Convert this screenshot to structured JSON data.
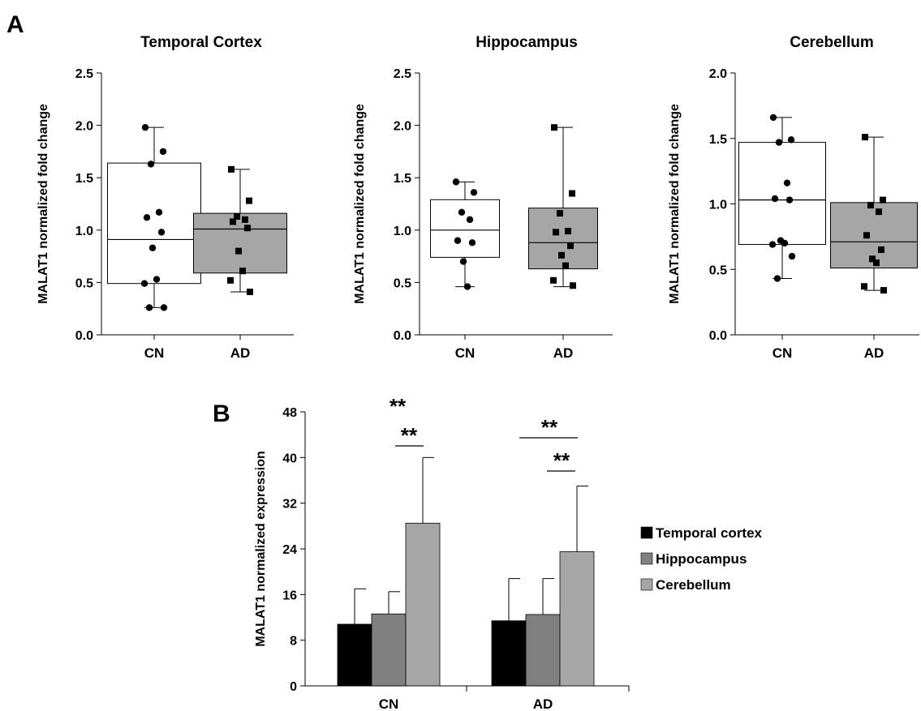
{
  "panels": {
    "a_label": "A",
    "b_label": "B"
  },
  "chart_data": [
    {
      "type": "box",
      "title": "Temporal Cortex",
      "ylabel": "MALAT1 normalized fold change",
      "ylim": [
        0,
        2.5
      ],
      "yticks": [
        "0.0",
        "0.5",
        "1.0",
        "1.5",
        "2.0",
        "2.5"
      ],
      "categories": [
        "CN",
        "AD"
      ],
      "groups": [
        {
          "category": "CN",
          "fill": "#ffffff",
          "marker": "circle",
          "q1": 0.49,
          "median": 0.91,
          "q3": 1.64,
          "whisker_low": 0.26,
          "whisker_high": 1.98,
          "points": [
            1.98,
            1.75,
            1.63,
            1.17,
            1.12,
            0.98,
            0.83,
            0.53,
            0.49,
            0.26,
            0.26
          ]
        },
        {
          "category": "AD",
          "fill": "#a6a6a6",
          "marker": "square",
          "q1": 0.59,
          "median": 1.01,
          "q3": 1.16,
          "whisker_low": 0.41,
          "whisker_high": 1.58,
          "points": [
            1.58,
            1.28,
            1.13,
            1.1,
            1.08,
            1.02,
            0.8,
            0.61,
            0.52,
            0.41
          ]
        }
      ]
    },
    {
      "type": "box",
      "title": "Hippocampus",
      "ylabel": "MALAT1 normalized fold change",
      "ylim": [
        0,
        2.5
      ],
      "yticks": [
        "0.0",
        "0.5",
        "1.0",
        "1.5",
        "2.0",
        "2.5"
      ],
      "categories": [
        "CN",
        "AD"
      ],
      "groups": [
        {
          "category": "CN",
          "fill": "#ffffff",
          "marker": "circle",
          "q1": 0.74,
          "median": 1.0,
          "q3": 1.29,
          "whisker_low": 0.46,
          "whisker_high": 1.46,
          "points": [
            1.46,
            1.36,
            1.17,
            1.1,
            0.9,
            0.88,
            0.7,
            0.46
          ]
        },
        {
          "category": "AD",
          "fill": "#a6a6a6",
          "marker": "square",
          "q1": 0.63,
          "median": 0.88,
          "q3": 1.21,
          "whisker_low": 0.46,
          "whisker_high": 1.98,
          "points": [
            1.98,
            1.35,
            1.16,
            0.99,
            0.98,
            0.85,
            0.76,
            0.66,
            0.52,
            0.47
          ]
        }
      ]
    },
    {
      "type": "box",
      "title": "Cerebellum",
      "ylabel": "MALAT1 normalized fold change",
      "ylim": [
        0,
        2.0
      ],
      "yticks": [
        "0.0",
        "0.5",
        "1.0",
        "1.5",
        "2.0"
      ],
      "categories": [
        "CN",
        "AD"
      ],
      "groups": [
        {
          "category": "CN",
          "fill": "#ffffff",
          "marker": "circle",
          "q1": 0.69,
          "median": 1.03,
          "q3": 1.47,
          "whisker_low": 0.43,
          "whisker_high": 1.66,
          "points": [
            1.66,
            1.49,
            1.47,
            1.16,
            1.04,
            1.03,
            0.72,
            0.7,
            0.69,
            0.6,
            0.43
          ]
        },
        {
          "category": "AD",
          "fill": "#a6a6a6",
          "marker": "square",
          "q1": 0.51,
          "median": 0.71,
          "q3": 1.01,
          "whisker_low": 0.34,
          "whisker_high": 1.51,
          "points": [
            1.51,
            1.03,
            0.99,
            0.94,
            0.76,
            0.65,
            0.58,
            0.55,
            0.37,
            0.34
          ]
        }
      ]
    },
    {
      "type": "bar",
      "ylabel": "MALAT1 normalized expression",
      "ylim": [
        0,
        48
      ],
      "yticks": [
        "0",
        "8",
        "16",
        "24",
        "32",
        "40",
        "48"
      ],
      "categories": [
        "CN",
        "AD"
      ],
      "series": [
        {
          "name": "Temporal cortex",
          "color": "#000000",
          "values": [
            10.8,
            11.4
          ],
          "errors": [
            6.2,
            7.4
          ]
        },
        {
          "name": "Hippocampus",
          "color": "#808080",
          "values": [
            12.6,
            12.5
          ],
          "errors": [
            3.9,
            6.3
          ]
        },
        {
          "name": "Cerebellum",
          "color": "#a6a6a6",
          "values": [
            28.5,
            23.5
          ],
          "errors": [
            11.5,
            11.5
          ]
        }
      ],
      "legend": "right",
      "annotations": [
        {
          "text": "**",
          "category": "CN",
          "type": "free"
        },
        {
          "text": "**",
          "category": "CN",
          "from": "Hippocampus",
          "to": "Cerebellum",
          "type": "bracket"
        },
        {
          "text": "**",
          "category": "AD",
          "from": "Temporal cortex",
          "to": "Cerebellum",
          "type": "bracket"
        },
        {
          "text": "**",
          "category": "AD",
          "from": "Hippocampus",
          "to": "Cerebellum",
          "type": "bracket"
        }
      ]
    }
  ]
}
